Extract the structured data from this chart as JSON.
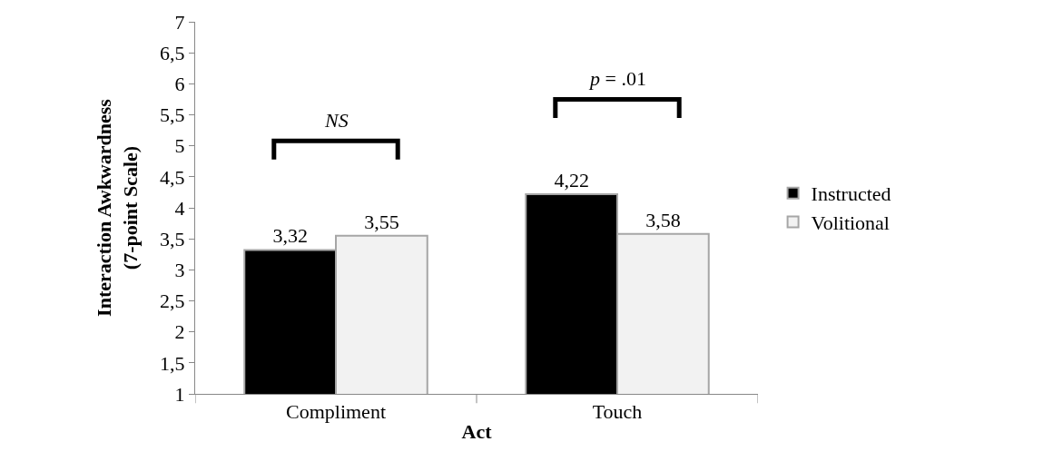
{
  "chart_data": {
    "type": "bar",
    "xlabel": "Act",
    "ylabel": "Interaction Awkwardness\n(7-point Scale)",
    "categories": [
      "Compliment",
      "Touch"
    ],
    "series": [
      {
        "name": "Instructed",
        "color": "#000000",
        "values": [
          3.32,
          4.22
        ],
        "value_labels": [
          "3,32",
          "4,22"
        ]
      },
      {
        "name": "Volitional",
        "color": "#f2f2f2",
        "values": [
          3.55,
          3.58
        ],
        "value_labels": [
          "3,55",
          "3,58"
        ]
      }
    ],
    "ylim": [
      1,
      7
    ],
    "yticks": [
      1,
      {
        "value": 1.5,
        "label": "1,5"
      },
      2,
      {
        "value": 2.5,
        "label": "2,5"
      },
      3,
      {
        "value": 3.5,
        "label": "3,5"
      },
      4,
      {
        "value": 4.5,
        "label": "4,5"
      },
      5,
      {
        "value": 5.5,
        "label": "5,5"
      },
      6,
      {
        "value": 6.5,
        "label": "6,5"
      },
      7
    ],
    "annotations": [
      "NS",
      "p = .01"
    ],
    "legend": "right"
  }
}
